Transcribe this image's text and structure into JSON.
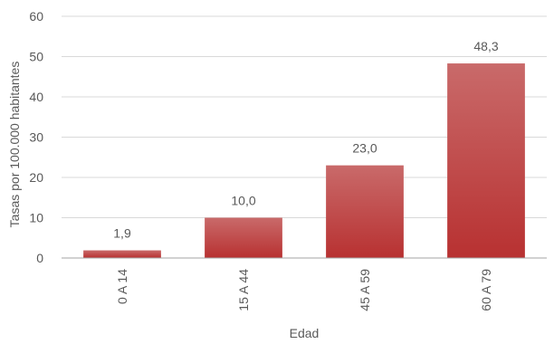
{
  "chart_data": {
    "type": "bar",
    "categories": [
      "0 A 14",
      "15 A 44",
      "45 A 59",
      "60 A 79"
    ],
    "values": [
      1.9,
      10.0,
      23.0,
      48.3
    ],
    "data_labels": [
      "1,9",
      "10,0",
      "23,0",
      "48,3"
    ],
    "title": "",
    "xlabel": "Edad",
    "ylabel": "Tasas por 100.000 habitantes",
    "ylim": [
      0,
      60
    ],
    "yticks": [
      0,
      10,
      20,
      30,
      40,
      50,
      60
    ],
    "grid": true,
    "legend": "none",
    "colors": {
      "bar_top": "#c96a6a",
      "bar_bottom": "#b83131",
      "grid": "#d9d9d9",
      "axis": "#a6a6a6",
      "text": "#595959"
    }
  }
}
